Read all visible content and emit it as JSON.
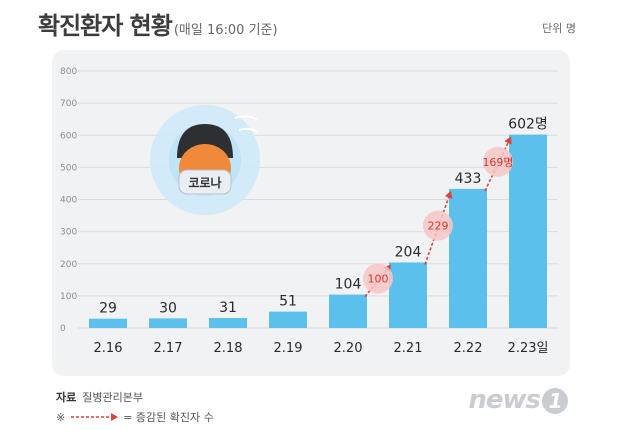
{
  "header": {
    "title": "확진환자 현황",
    "subtitle": "(매일 16:00 기준)",
    "unit": "단위 명"
  },
  "illustration": {
    "label": "코로나"
  },
  "chart_data": {
    "type": "bar",
    "categories": [
      "2.16",
      "2.17",
      "2.18",
      "2.19",
      "2.20",
      "2.21",
      "2.22",
      "2.23일"
    ],
    "values": [
      29,
      30,
      31,
      51,
      104,
      204,
      433,
      602
    ],
    "value_labels": [
      "29",
      "30",
      "31",
      "51",
      "104",
      "204",
      "433",
      "602명"
    ],
    "ylim": [
      0,
      800
    ],
    "yticks": [
      0,
      100,
      200,
      300,
      400,
      500,
      600,
      700,
      800
    ],
    "grid": true,
    "increases": [
      {
        "from": 4,
        "to": 5,
        "label": "100"
      },
      {
        "from": 5,
        "to": 6,
        "label": "229"
      },
      {
        "from": 6,
        "to": 7,
        "label": "169명"
      }
    ],
    "colors": {
      "bar": "#5bc0ec",
      "arrow": "#e0403a",
      "badge": "#f6c7c4",
      "grid": "#d9dbe0"
    }
  },
  "footer": {
    "source_label": "자료",
    "source": "질병관리본부",
    "legend_symbol": "※",
    "legend_text": "= 증감된 확진자 수",
    "logo_text": "news",
    "logo_num": "1"
  }
}
